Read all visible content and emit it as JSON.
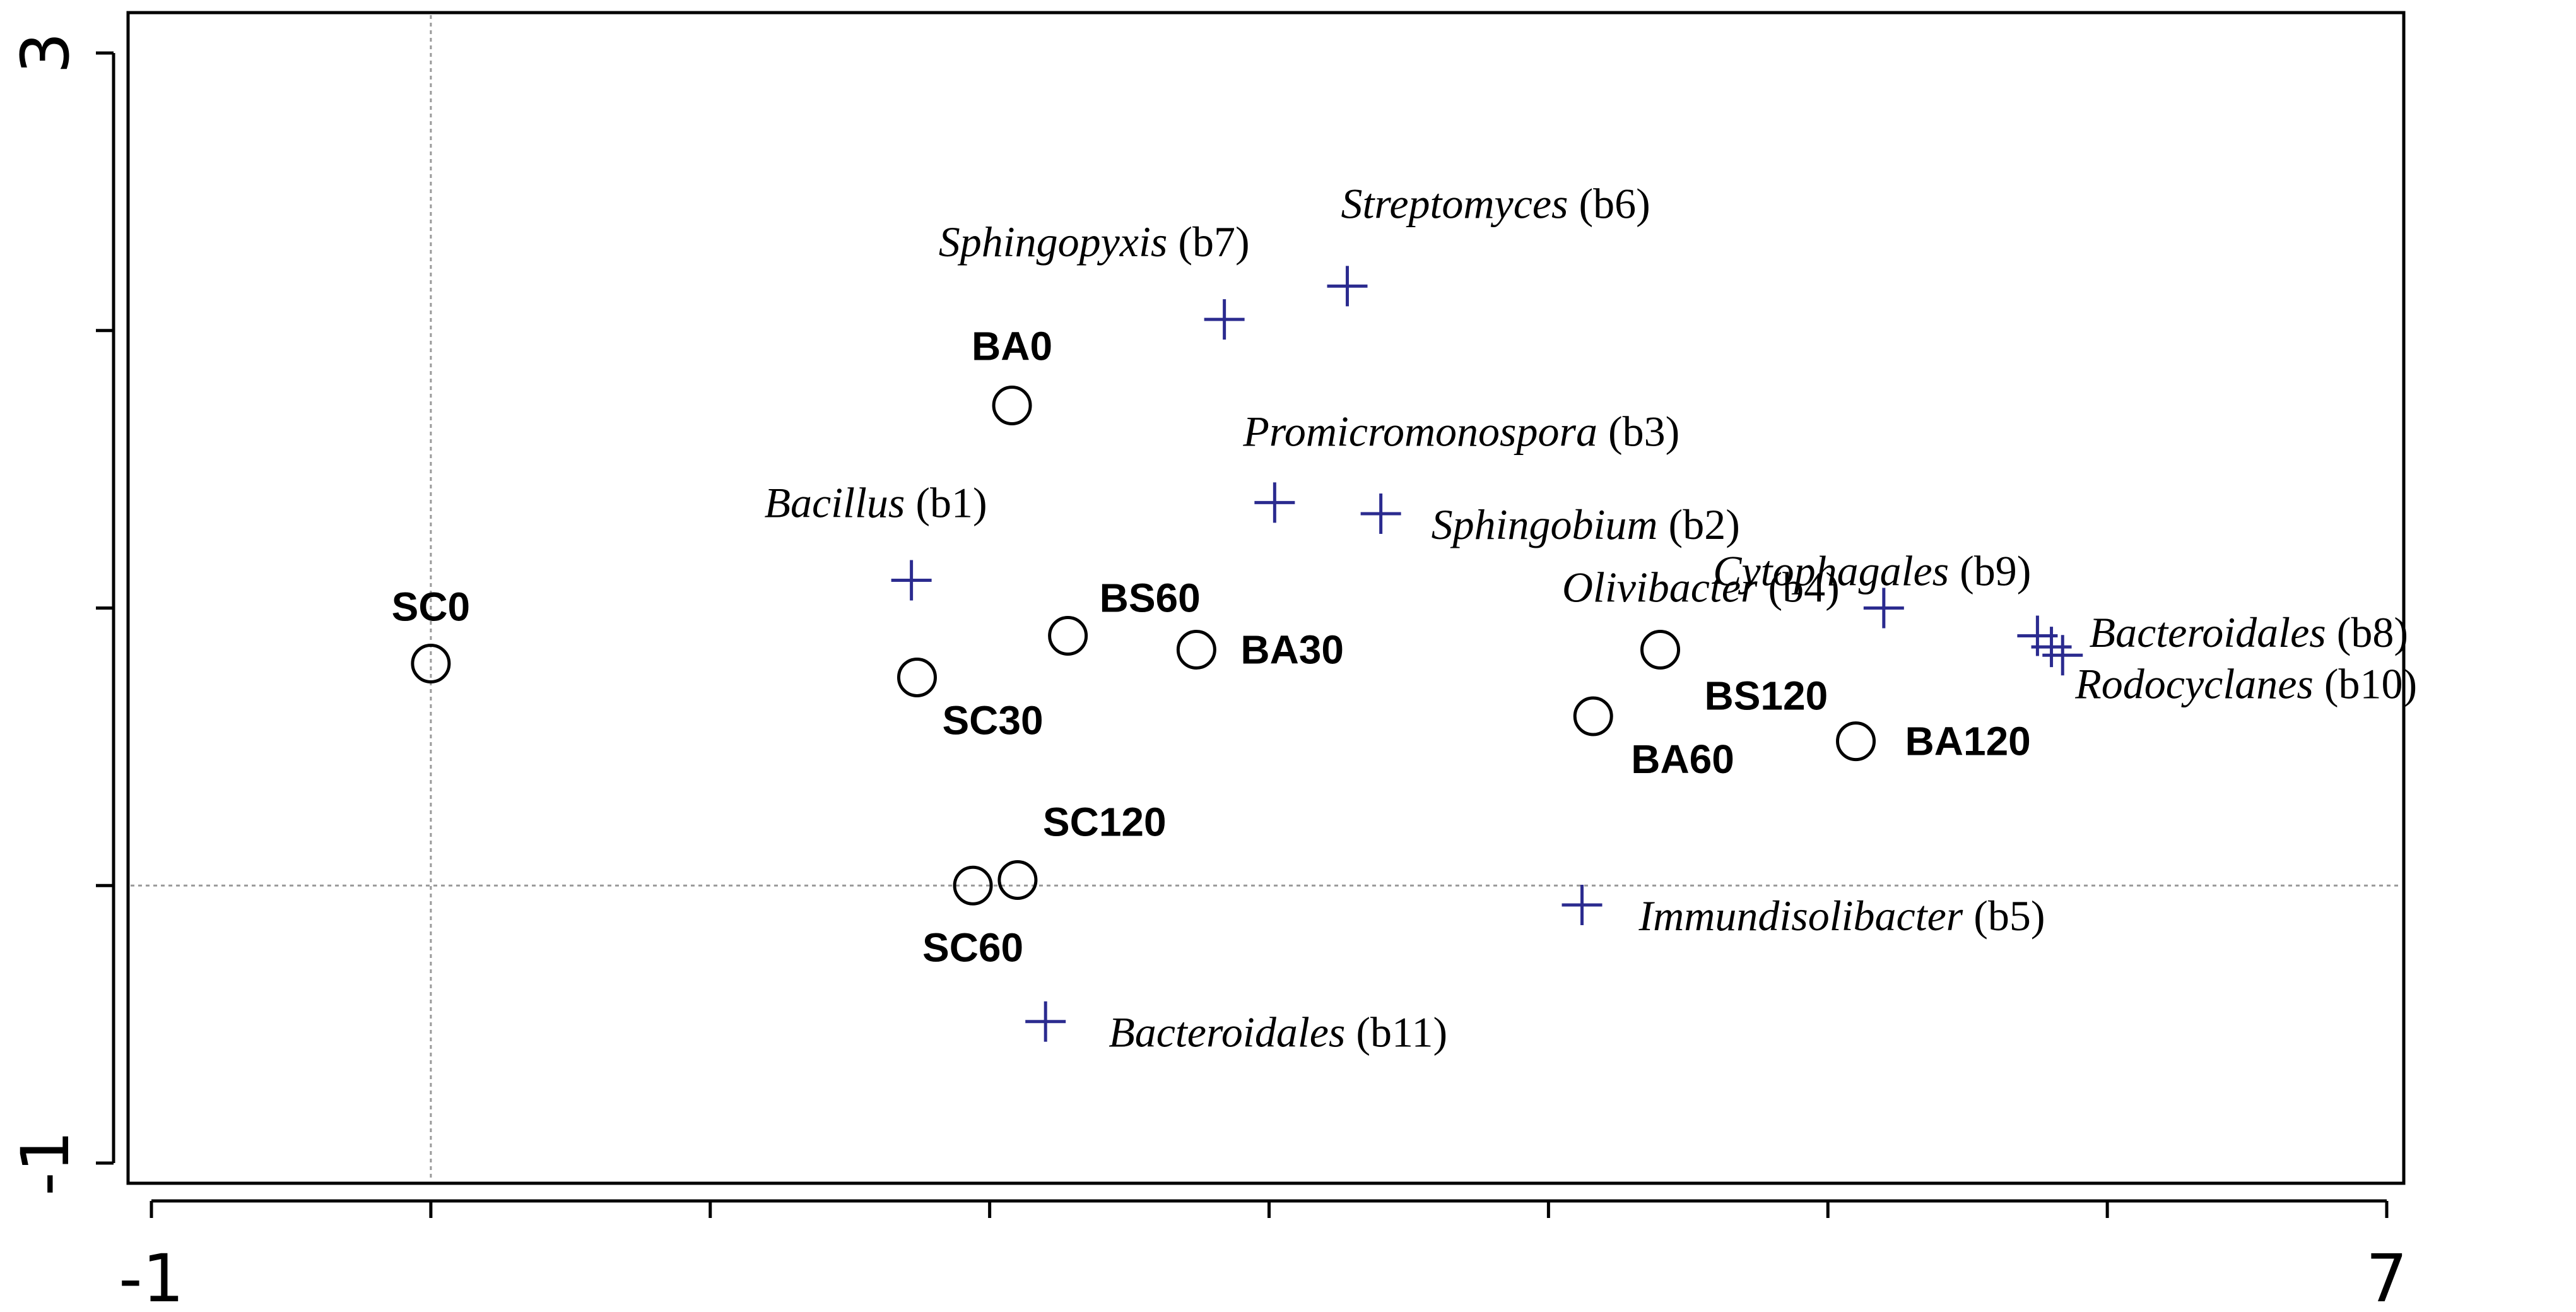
{
  "chart_data": {
    "type": "scatter",
    "title": "",
    "xlabel": "",
    "ylabel": "",
    "xlim": [
      -1,
      7
    ],
    "ylim": [
      -1,
      3
    ],
    "x_tick_labels": [
      "-1",
      "7"
    ],
    "y_tick_labels": [
      "-1",
      "3"
    ],
    "reference_lines": {
      "x": 0,
      "y": 0
    },
    "colors": {
      "samples": "#000000",
      "taxa": "#2b2b8f",
      "reference_line": "#999999"
    },
    "series": [
      {
        "marker": "circle",
        "points": [
          {
            "label": "SC0",
            "x": 0.0,
            "y": 0.8
          },
          {
            "label": "BA0",
            "x": 2.08,
            "y": 1.73
          },
          {
            "label": "BS60",
            "x": 2.28,
            "y": 0.9
          },
          {
            "label": "BA30",
            "x": 2.74,
            "y": 0.85
          },
          {
            "label": "SC30",
            "x": 1.74,
            "y": 0.75
          },
          {
            "label": "BS120",
            "x": 4.4,
            "y": 0.85
          },
          {
            "label": "BA60",
            "x": 4.16,
            "y": 0.61
          },
          {
            "label": "BA120",
            "x": 5.1,
            "y": 0.52
          },
          {
            "label": "SC120",
            "x": 2.1,
            "y": 0.02
          },
          {
            "label": "SC60",
            "x": 1.94,
            "y": 0.0
          }
        ]
      },
      {
        "marker": "plus",
        "points": [
          {
            "name": "Sphingopyxis",
            "code": "(b7)",
            "x": 2.84,
            "y": 2.04
          },
          {
            "name": "Streptomyces",
            "code": "(b6)",
            "x": 3.28,
            "y": 2.16
          },
          {
            "name": "Promicromonospora",
            "code": "(b3)",
            "x": 3.02,
            "y": 1.38
          },
          {
            "name": "Sphingobium",
            "code": "(b2)",
            "x": 3.4,
            "y": 1.34
          },
          {
            "name": "Bacillus",
            "code": "(b1)",
            "x": 1.72,
            "y": 1.1
          },
          {
            "name": "Olivibacter",
            "code": "(b4)",
            "x": 5.2,
            "y": 1.0
          },
          {
            "name": "Cytophagales",
            "code": "(b9)",
            "x": 5.75,
            "y": 0.9
          },
          {
            "name": "Bacteroidales",
            "code": "(b8)",
            "x": 5.8,
            "y": 0.86
          },
          {
            "name": "Rodocyclanes",
            "code": "(b10)",
            "x": 5.84,
            "y": 0.83
          },
          {
            "name": "Immundisolibacter",
            "code": "(b5)",
            "x": 4.12,
            "y": -0.07
          },
          {
            "name": "Bacteroidales",
            "code": "(b11)",
            "x": 2.2,
            "y": -0.49
          }
        ]
      }
    ]
  }
}
